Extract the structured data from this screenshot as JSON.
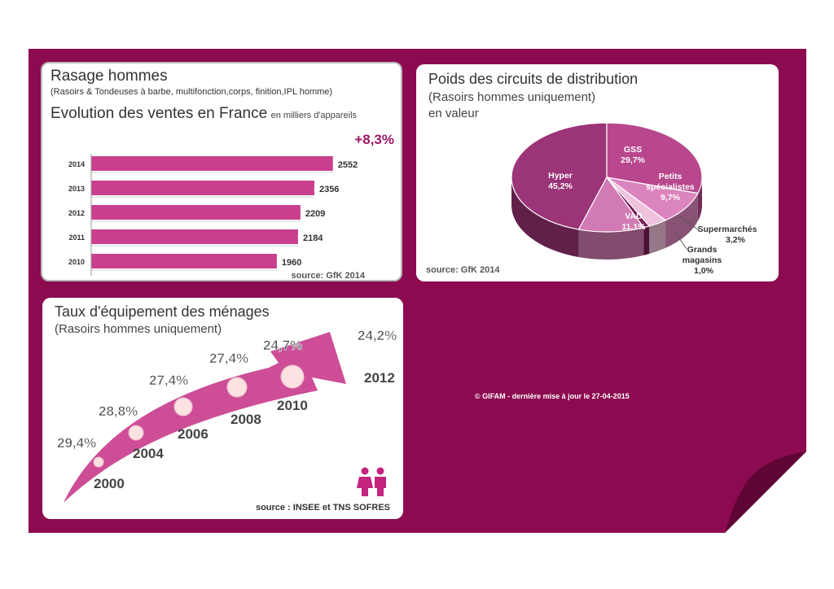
{
  "colors": {
    "background": "#8c0a50",
    "bar": "#c93f8e",
    "accent": "#9b1567",
    "pie_hyper": "#9c3478",
    "pie_gss": "#b8478d",
    "pie_petits": "#dc84bd",
    "pie_vad": "#d27ab3",
    "pie_super": "#eec2dc",
    "pie_grands": "#7a1b57"
  },
  "panel1": {
    "title": "Rasage hommes",
    "subtitle": "(Rasoirs & Tondeuses à barbe, multifonction,corps, finition,IPL homme)",
    "heading": "Evolution des ventes en France",
    "heading_unit": "en milliers d'appareils",
    "growth": "+8,3%",
    "source": "source: GfK 2014"
  },
  "panel2": {
    "title": "Poids des circuits de distribution",
    "subtitle": "(Rasoirs hommes uniquement)",
    "subtitle2": "en valeur",
    "source": "source: GfK 2014"
  },
  "panel3": {
    "title": "Taux d'équipement des ménages",
    "subtitle": "(Rasoirs hommes uniquement)",
    "source": "source : INSEE et TNS SOFRES",
    "icon": "people-icon"
  },
  "footer": "© GIFAM - dernière mise à jour le 27-04-2015",
  "chart_data": [
    {
      "type": "bar",
      "orientation": "horizontal",
      "categories": [
        "2014",
        "2013",
        "2012",
        "2011",
        "2010"
      ],
      "values": [
        2552,
        2356,
        2209,
        2184,
        1960
      ],
      "value_labels": [
        "2552",
        "2356",
        "2209",
        "2184",
        "1960"
      ]
    },
    {
      "type": "pie",
      "style": "3d",
      "slices": [
        {
          "name": "Hyper",
          "value": 45.2,
          "label": "45,2%"
        },
        {
          "name": "GSS",
          "value": 29.7,
          "label": "29,7%"
        },
        {
          "name": "Petits spécialistes",
          "value": 9.7,
          "label": "9,7%"
        },
        {
          "name": "Supermarchés",
          "value": 3.2,
          "label": "3,2%"
        },
        {
          "name": "Grands magasins",
          "value": 1.0,
          "label": "1,0%"
        },
        {
          "name": "VAD",
          "value": 11.1,
          "label": "11,1%"
        }
      ]
    },
    {
      "type": "line",
      "style": "arrow-infographic",
      "points": [
        {
          "year": "2000",
          "value": 29.4,
          "label": "29,4%"
        },
        {
          "year": "2004",
          "value": 28.8,
          "label": "28,8%"
        },
        {
          "year": "2006",
          "value": 27.4,
          "label": "27,4%"
        },
        {
          "year": "2008",
          "value": 27.4,
          "label": "27,4%"
        },
        {
          "year": "2010",
          "value": 24.7,
          "label": "24,7%"
        },
        {
          "year": "2012",
          "value": 24.2,
          "label": "24,2%"
        }
      ]
    }
  ]
}
